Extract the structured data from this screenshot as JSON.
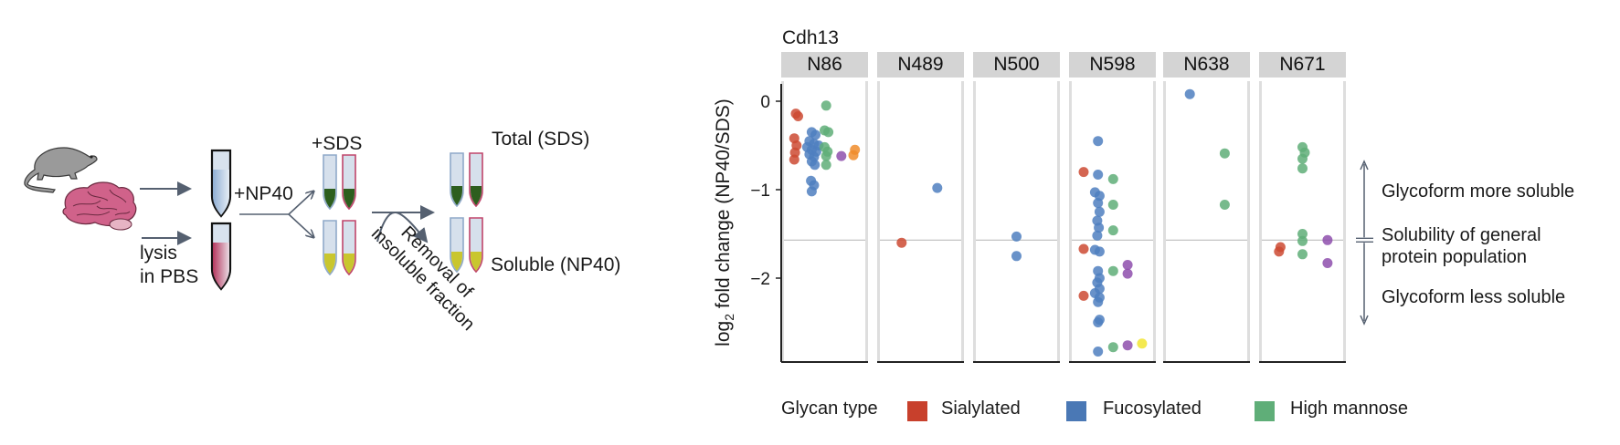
{
  "schematic": {
    "label_lysis": [
      "lysis",
      "in PBS"
    ],
    "label_np40": "+NP40",
    "label_sds": "+SDS",
    "label_removal": [
      "Removal of",
      "insoluble fraction"
    ],
    "label_total": "Total (SDS)",
    "label_soluble": "Soluble (NP40)",
    "colors": {
      "mouse": "#9a9a9a",
      "brain": "#c8507a",
      "tube_body": "#d6e0ec",
      "tube_outline_blue": "#8fa9c9",
      "tube_outline_red": "#c0456b",
      "sds_fill": "#2d5e1e",
      "np40_fill": "#c9c62e",
      "arrow": "#556070"
    }
  },
  "chart_data": {
    "type": "scatter",
    "title": "Cdh13",
    "xlabel": "",
    "ylabel": "log2 fold change (NP40/SDS)",
    "ylabel_main": "log",
    "ylabel_sub": "2",
    "ylabel_rest": " fold change (NP40/SDS)",
    "ylim": [
      -2.95,
      0.2
    ],
    "yticks": [
      0,
      -1,
      -2
    ],
    "ytick_labels": [
      "0",
      "−1",
      "−2"
    ],
    "reference_line": -1.57,
    "grid": false,
    "facets": [
      "N86",
      "N489",
      "N500",
      "N598",
      "N638",
      "N671"
    ],
    "glycan_colors": {
      "Sialylated": "#cc4a32",
      "Fucosylated": "#4f7fc0",
      "High mannose": "#5fae78",
      "purple": "#8e4fad",
      "orange": "#f08c2c",
      "yellow": "#f2e531"
    },
    "points": {
      "N86": [
        {
          "g": "Sialylated",
          "x": 0.12,
          "y": -0.14
        },
        {
          "g": "Sialylated",
          "x": 0.15,
          "y": -0.17
        },
        {
          "g": "Sialylated",
          "x": 0.1,
          "y": -0.42
        },
        {
          "g": "Sialylated",
          "x": 0.13,
          "y": -0.5
        },
        {
          "g": "Sialylated",
          "x": 0.11,
          "y": -0.58
        },
        {
          "g": "Sialylated",
          "x": 0.1,
          "y": -0.66
        },
        {
          "g": "Fucosylated",
          "x": 0.33,
          "y": -0.35
        },
        {
          "g": "Fucosylated",
          "x": 0.38,
          "y": -0.38
        },
        {
          "g": "Fucosylated",
          "x": 0.3,
          "y": -0.45
        },
        {
          "g": "Fucosylated",
          "x": 0.36,
          "y": -0.48
        },
        {
          "g": "Fucosylated",
          "x": 0.42,
          "y": -0.5
        },
        {
          "g": "Fucosylated",
          "x": 0.27,
          "y": -0.52
        },
        {
          "g": "Fucosylated",
          "x": 0.33,
          "y": -0.55
        },
        {
          "g": "Fucosylated",
          "x": 0.39,
          "y": -0.57
        },
        {
          "g": "Fucosylated",
          "x": 0.3,
          "y": -0.6
        },
        {
          "g": "Fucosylated",
          "x": 0.36,
          "y": -0.63
        },
        {
          "g": "Fucosylated",
          "x": 0.33,
          "y": -0.68
        },
        {
          "g": "Fucosylated",
          "x": 0.37,
          "y": -0.72
        },
        {
          "g": "Fucosylated",
          "x": 0.32,
          "y": -0.9
        },
        {
          "g": "Fucosylated",
          "x": 0.36,
          "y": -0.95
        },
        {
          "g": "Fucosylated",
          "x": 0.33,
          "y": -1.02
        },
        {
          "g": "High mannose",
          "x": 0.52,
          "y": -0.05
        },
        {
          "g": "High mannose",
          "x": 0.5,
          "y": -0.33
        },
        {
          "g": "High mannose",
          "x": 0.55,
          "y": -0.35
        },
        {
          "g": "High mannose",
          "x": 0.5,
          "y": -0.52
        },
        {
          "g": "High mannose",
          "x": 0.54,
          "y": -0.57
        },
        {
          "g": "High mannose",
          "x": 0.52,
          "y": -0.62
        },
        {
          "g": "High mannose",
          "x": 0.52,
          "y": -0.72
        },
        {
          "g": "purple",
          "x": 0.72,
          "y": -0.62
        },
        {
          "g": "orange",
          "x": 0.9,
          "y": -0.55
        },
        {
          "g": "orange",
          "x": 0.88,
          "y": -0.61
        }
      ],
      "N489": [
        {
          "g": "Sialylated",
          "x": 0.25,
          "y": -1.6
        },
        {
          "g": "Fucosylated",
          "x": 0.72,
          "y": -0.98
        }
      ],
      "N500": [
        {
          "g": "Fucosylated",
          "x": 0.5,
          "y": -1.53
        },
        {
          "g": "Fucosylated",
          "x": 0.5,
          "y": -1.75
        }
      ],
      "N598": [
        {
          "g": "Sialylated",
          "x": 0.12,
          "y": -0.8
        },
        {
          "g": "Sialylated",
          "x": 0.12,
          "y": -1.67
        },
        {
          "g": "Sialylated",
          "x": 0.12,
          "y": -2.2
        },
        {
          "g": "Fucosylated",
          "x": 0.31,
          "y": -0.45
        },
        {
          "g": "Fucosylated",
          "x": 0.31,
          "y": -0.83
        },
        {
          "g": "Fucosylated",
          "x": 0.27,
          "y": -1.03
        },
        {
          "g": "Fucosylated",
          "x": 0.33,
          "y": -1.07
        },
        {
          "g": "Fucosylated",
          "x": 0.31,
          "y": -1.15
        },
        {
          "g": "Fucosylated",
          "x": 0.33,
          "y": -1.25
        },
        {
          "g": "Fucosylated",
          "x": 0.3,
          "y": -1.35
        },
        {
          "g": "Fucosylated",
          "x": 0.32,
          "y": -1.43
        },
        {
          "g": "Fucosylated",
          "x": 0.3,
          "y": -1.52
        },
        {
          "g": "Fucosylated",
          "x": 0.27,
          "y": -1.68
        },
        {
          "g": "Fucosylated",
          "x": 0.33,
          "y": -1.7
        },
        {
          "g": "Fucosylated",
          "x": 0.31,
          "y": -1.92
        },
        {
          "g": "Fucosylated",
          "x": 0.33,
          "y": -2.0
        },
        {
          "g": "Fucosylated",
          "x": 0.3,
          "y": -2.05
        },
        {
          "g": "Fucosylated",
          "x": 0.33,
          "y": -2.12
        },
        {
          "g": "Fucosylated",
          "x": 0.27,
          "y": -2.17
        },
        {
          "g": "Fucosylated",
          "x": 0.33,
          "y": -2.22
        },
        {
          "g": "Fucosylated",
          "x": 0.31,
          "y": -2.27
        },
        {
          "g": "Fucosylated",
          "x": 0.31,
          "y": -2.5
        },
        {
          "g": "Fucosylated",
          "x": 0.33,
          "y": -2.47
        },
        {
          "g": "Fucosylated",
          "x": 0.31,
          "y": -2.83
        },
        {
          "g": "High mannose",
          "x": 0.51,
          "y": -0.88
        },
        {
          "g": "High mannose",
          "x": 0.51,
          "y": -1.17
        },
        {
          "g": "High mannose",
          "x": 0.51,
          "y": -1.46
        },
        {
          "g": "High mannose",
          "x": 0.51,
          "y": -1.92
        },
        {
          "g": "High mannose",
          "x": 0.51,
          "y": -2.78
        },
        {
          "g": "purple",
          "x": 0.7,
          "y": -1.85
        },
        {
          "g": "purple",
          "x": 0.7,
          "y": -1.95
        },
        {
          "g": "purple",
          "x": 0.7,
          "y": -2.76
        },
        {
          "g": "yellow",
          "x": 0.89,
          "y": -2.74
        }
      ],
      "N638": [
        {
          "g": "Fucosylated",
          "x": 0.28,
          "y": 0.08
        },
        {
          "g": "High mannose",
          "x": 0.74,
          "y": -0.59
        },
        {
          "g": "High mannose",
          "x": 0.74,
          "y": -1.17
        }
      ],
      "N671": [
        {
          "g": "Sialylated",
          "x": 0.21,
          "y": -1.65
        },
        {
          "g": "Sialylated",
          "x": 0.19,
          "y": -1.7
        },
        {
          "g": "High mannose",
          "x": 0.5,
          "y": -0.52
        },
        {
          "g": "High mannose",
          "x": 0.53,
          "y": -0.58
        },
        {
          "g": "High mannose",
          "x": 0.5,
          "y": -0.65
        },
        {
          "g": "High mannose",
          "x": 0.5,
          "y": -0.76
        },
        {
          "g": "High mannose",
          "x": 0.5,
          "y": -1.5
        },
        {
          "g": "High mannose",
          "x": 0.5,
          "y": -1.58
        },
        {
          "g": "High mannose",
          "x": 0.5,
          "y": -1.73
        },
        {
          "g": "purple",
          "x": 0.83,
          "y": -1.57
        },
        {
          "g": "purple",
          "x": 0.83,
          "y": -1.83
        }
      ]
    },
    "annotation": {
      "more": "Glycoform more soluble",
      "general": [
        "Solubility of general",
        "protein population"
      ],
      "less": "Glycoform less soluble"
    },
    "legend": {
      "title": "Glycan type",
      "placement": "bottom",
      "items": [
        {
          "label": "Sialylated",
          "color": "#c8402c"
        },
        {
          "label": "Fucosylated",
          "color": "#4a78b5"
        },
        {
          "label": "High mannose",
          "color": "#5fae78"
        }
      ]
    }
  }
}
